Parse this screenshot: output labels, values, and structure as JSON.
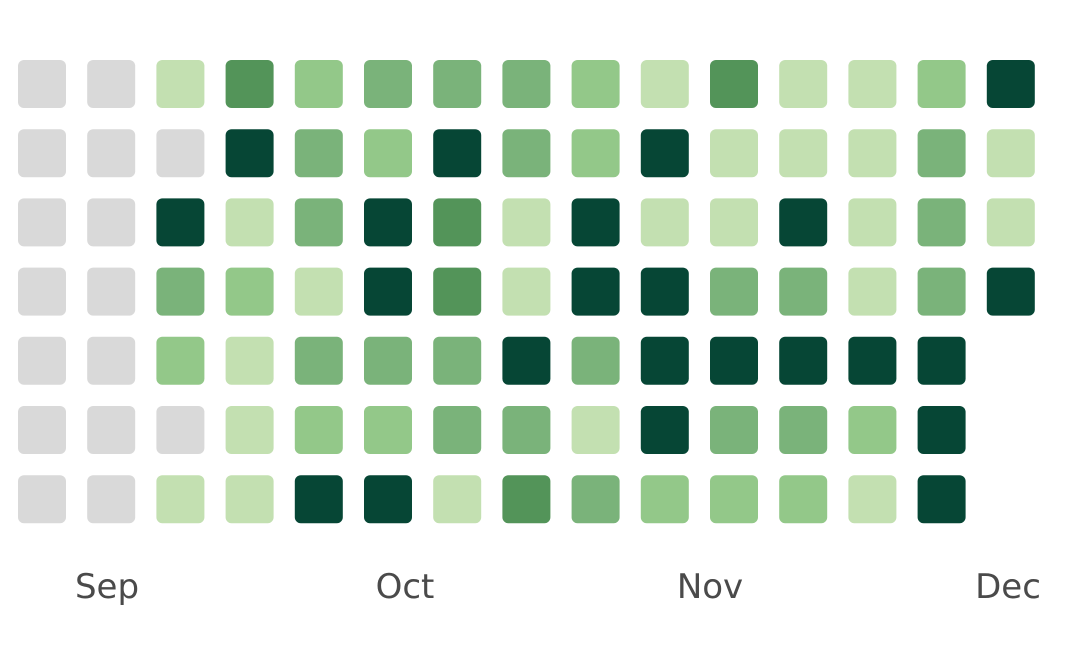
{
  "chart_data": {
    "type": "heatmap",
    "title": "",
    "xlabel": "",
    "ylabel": "",
    "month_labels": [
      "Sep",
      "Oct",
      "Nov",
      "Dec"
    ],
    "levels": [
      {
        "level": 0,
        "color": "#d9d9d9"
      },
      {
        "level": 1,
        "color": "#c3e0b1"
      },
      {
        "level": 2,
        "color": "#93c889"
      },
      {
        "level": 3,
        "color": "#7ab37a"
      },
      {
        "level": 4,
        "color": "#539459"
      },
      {
        "level": 5,
        "color": "#064635"
      }
    ],
    "rows": 7,
    "columns": 15,
    "week_levels": [
      [
        0,
        0,
        0,
        0,
        0,
        0,
        0
      ],
      [
        0,
        0,
        0,
        0,
        0,
        0,
        0
      ],
      [
        1,
        0,
        5,
        3,
        2,
        0,
        1
      ],
      [
        4,
        5,
        1,
        2,
        1,
        1,
        1
      ],
      [
        2,
        3,
        3,
        1,
        3,
        2,
        5
      ],
      [
        3,
        2,
        5,
        5,
        3,
        2,
        5
      ],
      [
        3,
        5,
        4,
        4,
        3,
        3,
        1
      ],
      [
        3,
        3,
        1,
        1,
        5,
        3,
        4
      ],
      [
        2,
        2,
        5,
        5,
        3,
        1,
        3
      ],
      [
        1,
        5,
        1,
        5,
        5,
        5,
        2
      ],
      [
        4,
        1,
        1,
        3,
        5,
        3,
        2
      ],
      [
        1,
        1,
        5,
        3,
        5,
        3,
        2
      ],
      [
        1,
        1,
        1,
        1,
        5,
        2,
        1
      ],
      [
        2,
        3,
        3,
        3,
        5,
        5,
        5
      ],
      [
        5,
        1,
        1,
        5,
        null,
        null,
        null
      ]
    ]
  }
}
